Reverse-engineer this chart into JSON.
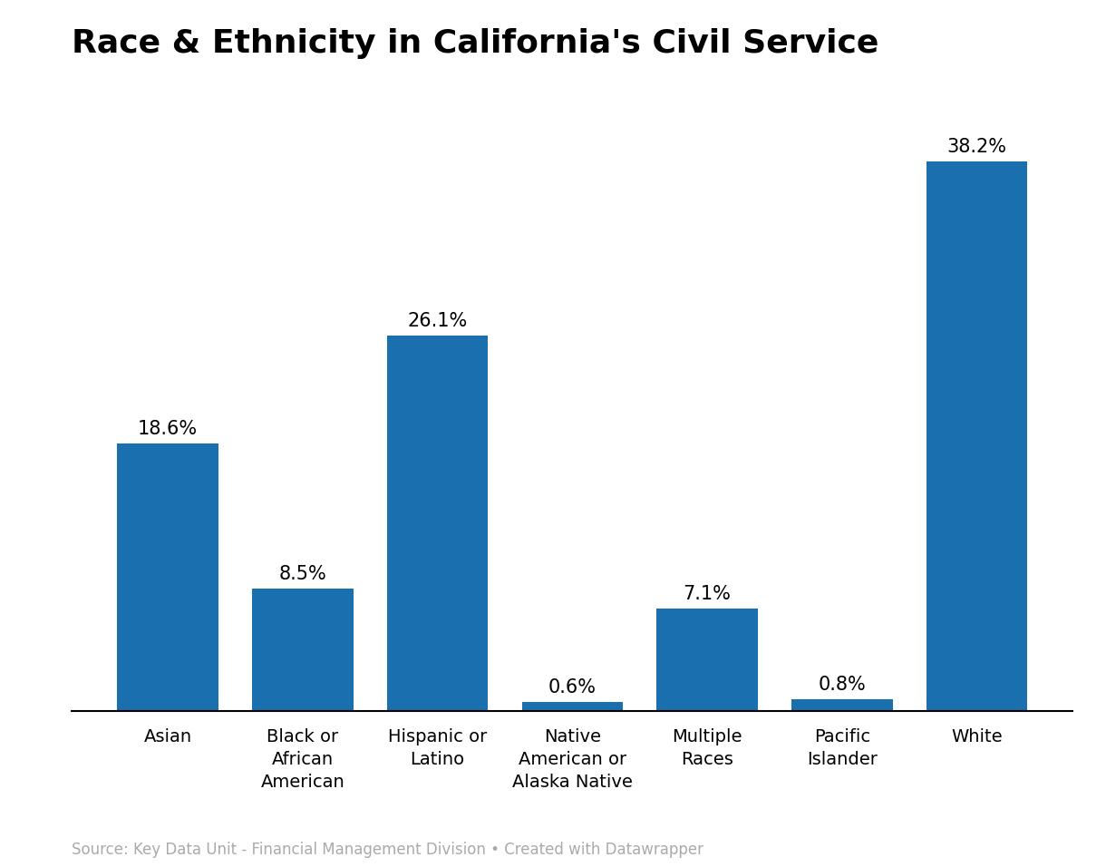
{
  "title": "Race & Ethnicity in California's Civil Service",
  "categories": [
    "Asian",
    "Black or\nAfrican\nAmerican",
    "Hispanic or\nLatino",
    "Native\nAmerican or\nAlaska Native",
    "Multiple\nRaces",
    "Pacific\nIslander",
    "White"
  ],
  "values": [
    18.6,
    8.5,
    26.1,
    0.6,
    7.1,
    0.8,
    38.2
  ],
  "labels": [
    "18.6%",
    "8.5%",
    "26.1%",
    "0.6%",
    "7.1%",
    "0.8%",
    "38.2%"
  ],
  "bar_color": "#1a6faf",
  "background_color": "#ffffff",
  "title_fontsize": 26,
  "label_fontsize": 15,
  "tick_fontsize": 14,
  "source_text": "Source: Key Data Unit - Financial Management Division • Created with Datawrapper",
  "source_fontsize": 12,
  "source_color": "#aaaaaa",
  "ylim": [
    0,
    44
  ],
  "bar_width": 0.75
}
